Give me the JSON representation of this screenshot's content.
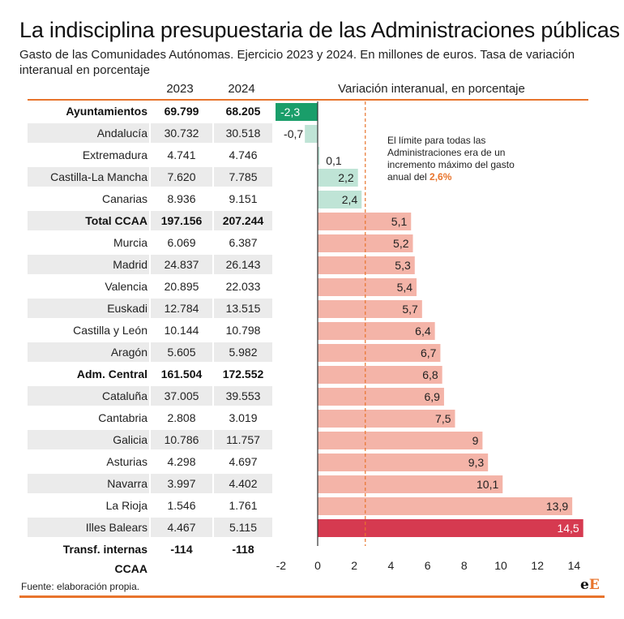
{
  "title": "La indisciplina presupuestaria de las Administraciones públicas",
  "subtitle": "Gasto de las Comunidades Autónomas. Ejercicio 2023 y 2024. En millones de euros. Tasa de variación interanual en porcentaje",
  "columns": {
    "y2023": "2023",
    "y2024": "2024",
    "variation": "Variación interanual, en porcentaje"
  },
  "annotation": {
    "text": "El límite para todas las Administraciones era de un incremento máximo del gasto anual del ",
    "highlight": "2,6%"
  },
  "source": "Fuente: elaboración propia.",
  "logo": {
    "part1": "e",
    "part2": "E"
  },
  "colors": {
    "accent": "#e8742c",
    "bar_positive": "#f4b4a8",
    "bar_max": "#d63a50",
    "bar_negative_small": "#bfe4d6",
    "bar_min": "#1a9e6a",
    "row_shade": "#ebebeb"
  },
  "rows": [
    {
      "name": "Ayuntamientos",
      "v2023": "69.799",
      "v2024": "68.205",
      "bold": true
    },
    {
      "name": "Andalucía",
      "v2023": "30.732",
      "v2024": "30.518",
      "bold": false
    },
    {
      "name": "Extremadura",
      "v2023": "4.741",
      "v2024": "4.746",
      "bold": false
    },
    {
      "name": "Castilla-La Mancha",
      "v2023": "7.620",
      "v2024": "7.785",
      "bold": false
    },
    {
      "name": "Canarias",
      "v2023": "8.936",
      "v2024": "9.151",
      "bold": false
    },
    {
      "name": "Total CCAA",
      "v2023": "197.156",
      "v2024": "207.244",
      "bold": true
    },
    {
      "name": "Murcia",
      "v2023": "6.069",
      "v2024": "6.387",
      "bold": false
    },
    {
      "name": "Madrid",
      "v2023": "24.837",
      "v2024": "26.143",
      "bold": false
    },
    {
      "name": "Valencia",
      "v2023": "20.895",
      "v2024": "22.033",
      "bold": false
    },
    {
      "name": "Euskadi",
      "v2023": "12.784",
      "v2024": "13.515",
      "bold": false
    },
    {
      "name": "Castilla y León",
      "v2023": "10.144",
      "v2024": "10.798",
      "bold": false
    },
    {
      "name": "Aragón",
      "v2023": "5.605",
      "v2024": "5.982",
      "bold": false
    },
    {
      "name": "Adm. Central",
      "v2023": "161.504",
      "v2024": "172.552",
      "bold": true
    },
    {
      "name": "Cataluña",
      "v2023": "37.005",
      "v2024": "39.553",
      "bold": false
    },
    {
      "name": "Cantabria",
      "v2023": "2.808",
      "v2024": "3.019",
      "bold": false
    },
    {
      "name": "Galicia",
      "v2023": "10.786",
      "v2024": "11.757",
      "bold": false
    },
    {
      "name": "Asturias",
      "v2023": "4.298",
      "v2024": "4.697",
      "bold": false
    },
    {
      "name": "Navarra",
      "v2023": "3.997",
      "v2024": "4.402",
      "bold": false
    },
    {
      "name": "La Rioja",
      "v2023": "1.546",
      "v2024": "1.761",
      "bold": false
    },
    {
      "name": "Illes Balears",
      "v2023": "4.467",
      "v2024": "5.115",
      "bold": false
    },
    {
      "name": "Transf. internas CCAA",
      "v2023": "-114",
      "v2024": "-118",
      "bold": true
    }
  ],
  "chart_data": {
    "type": "bar",
    "orientation": "horizontal",
    "categories": [
      "Ayuntamientos",
      "Andalucía",
      "Extremadura",
      "Castilla-La Mancha",
      "Canarias",
      "Total CCAA",
      "Murcia",
      "Madrid",
      "Valencia",
      "Euskadi",
      "Castilla y León",
      "Aragón",
      "Adm. Central",
      "Cataluña",
      "Cantabria",
      "Galicia",
      "Asturias",
      "Navarra",
      "La Rioja",
      "Illes Balears"
    ],
    "values": [
      -2.3,
      -0.7,
      0.1,
      2.2,
      2.4,
      5.1,
      5.2,
      5.3,
      5.4,
      5.7,
      6.4,
      6.7,
      6.8,
      6.9,
      7.5,
      9,
      9.3,
      10.1,
      13.9,
      14.5
    ],
    "value_labels": [
      "-2,3",
      "-0,7",
      "0,1",
      "2,2",
      "2,4",
      "5,1",
      "5,2",
      "5,3",
      "5,4",
      "5,7",
      "6,4",
      "6,7",
      "6,8",
      "6,9",
      "7,5",
      "9",
      "9,3",
      "10,1",
      "13,9",
      "14,5"
    ],
    "xlim": [
      -2,
      14
    ],
    "xticks": [
      -2,
      0,
      2,
      4,
      6,
      8,
      10,
      12,
      14
    ],
    "xtick_labels": [
      "-2",
      "0",
      "2",
      "4",
      "6",
      "8",
      "10",
      "12",
      "14"
    ],
    "reference_line": 2.6,
    "title": "Variación interanual, en porcentaje",
    "xlabel": "",
    "ylabel": "",
    "grid": false
  }
}
